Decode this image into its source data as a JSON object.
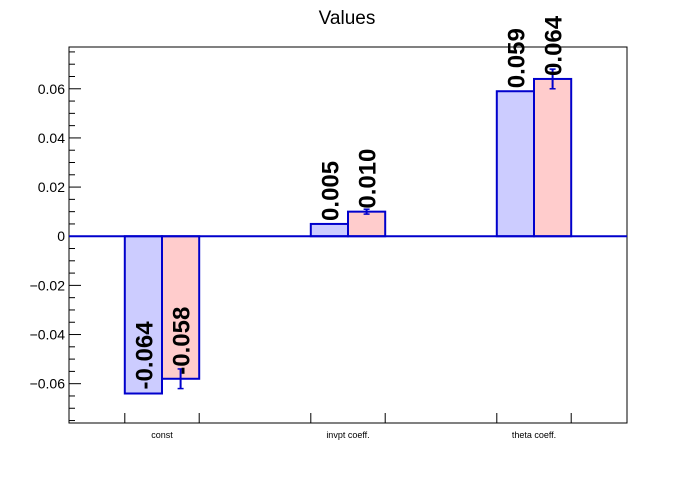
{
  "chart_data": {
    "type": "bar",
    "title": "Values",
    "categories": [
      "const",
      "invpt coeff.",
      "theta coeff."
    ],
    "series": [
      {
        "values": [
          -0.064,
          0.005,
          0.059
        ],
        "labels": [
          "-0.064",
          "0.005",
          "0.059"
        ],
        "errors": [
          0,
          0,
          0
        ],
        "fill": "#ccccff",
        "stroke": "#0000cc"
      },
      {
        "values": [
          -0.058,
          0.01,
          0.064
        ],
        "labels": [
          "-0.058",
          "0.010",
          "0.064"
        ],
        "errors": [
          0.004,
          0.001,
          0.004
        ],
        "fill": "#ffcccc",
        "stroke": "#0000cc"
      }
    ],
    "xlabel": "",
    "ylabel": "",
    "ylim": [
      -0.076,
      0.077
    ],
    "yticks": [
      -0.06,
      -0.04,
      -0.02,
      0,
      0.02,
      0.04,
      0.06
    ],
    "ytick_labels": [
      "−0.06",
      "−0.04",
      "−0.02",
      "0",
      "0.02",
      "0.04",
      "0.06"
    ],
    "grid": false,
    "axis_color": "#000000",
    "zero_line_color": "#0000cc"
  }
}
